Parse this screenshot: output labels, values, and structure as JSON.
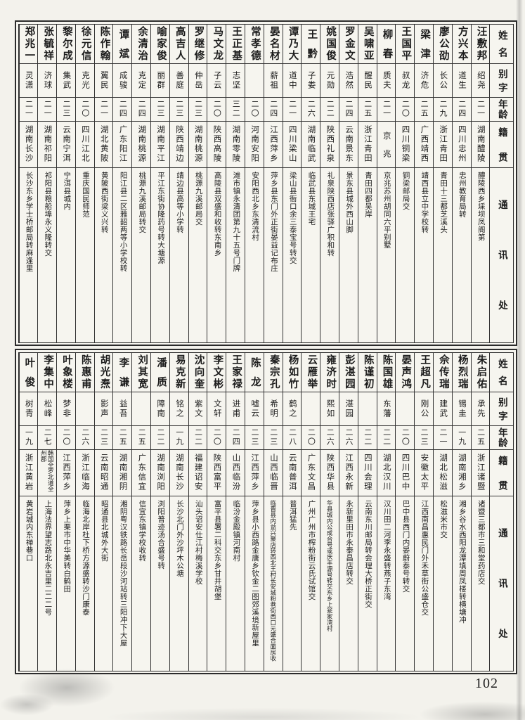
{
  "page": {
    "number": "102"
  },
  "headers": {
    "name": "姓名",
    "courtesy": "别字",
    "age": "年龄",
    "origin": "籍贯",
    "address": "通讯处"
  },
  "sections": [
    {
      "people": [
        {
          "name": "汪敷邦",
          "courtesy": "绍尧",
          "age": "二一",
          "origin": "湖南醴陵",
          "address": "醴陵西乡埰坝凤阁第"
        },
        {
          "name": "方兴本",
          "courtesy": "道生",
          "age": "二四",
          "origin": "四川忠州",
          "address": "忠州教育局转"
        },
        {
          "name": "廖公劭",
          "courtesy": "长公",
          "age": "二九",
          "origin": "浙江青田",
          "address": "青田十三都芝溪头"
        },
        {
          "name": "梁津",
          "courtesy": "济危",
          "age": "二五",
          "origin": "广西靖西",
          "address": "靖西县立中学校转"
        },
        {
          "name": "王国平",
          "courtesy": "叔龙",
          "age": "二〇",
          "origin": "四川铜梁",
          "address": "铜梁邮局交"
        },
        {
          "name": "柳春",
          "courtesy": "质夫",
          "age": "二一",
          "origin": "京兆",
          "address": "京兆苏州胡同六平别墅"
        },
        {
          "name": "吴啸亚",
          "courtesy": "醒民",
          "age": "二五",
          "origin": "浙江青田",
          "address": "青田四都吴岸"
        },
        {
          "name": "罗金文",
          "courtesy": "浩然",
          "age": "二四",
          "origin": "云南景东",
          "address": "景东县城外西山脚"
        },
        {
          "name": "姚国俊",
          "courtesy": "元勋",
          "age": "二二",
          "origin": "陕西礼泉",
          "address": "礼泉陕西店张驿广积和转"
        },
        {
          "name": "王黔",
          "courtesy": "子娄",
          "age": "二六",
          "origin": "湖南临武",
          "address": "临武县东城王宅"
        },
        {
          "name": "谭乃大",
          "courtesy": "道中",
          "age": "二一",
          "origin": "四川梁山",
          "address": "梁山县衙口余三泰宝号转交"
        },
        {
          "name": "晏名材",
          "courtesy": "薪祖",
          "age": "二四",
          "origin": "江西萍乡",
          "address": "萍乡县东门外正街晏益记布庄"
        },
        {
          "name": "常孝德",
          "courtesy": "",
          "age": "二〇",
          "origin": "河南安阳",
          "address": "安阳西北乡东清流村"
        },
        {
          "name": "王正基",
          "courtesy": "志坚",
          "age": "三二",
          "origin": "湖南零陵",
          "address": "滩市镇永清团第九十五号门牌"
        },
        {
          "name": "马文龙",
          "courtesy": "子云",
          "age": "二〇",
          "origin": "陕西高陵",
          "address": "高陵县双盛和收转东南乡"
        },
        {
          "name": "罗继修",
          "courtesy": "仲岳",
          "age": "二三",
          "origin": "湖南桃源",
          "address": "桃源九溪邮局交"
        },
        {
          "name": "高吉人",
          "courtesy": "善庭",
          "age": "二三",
          "origin": "陕西靖边",
          "address": "靖边县高等小学转"
        },
        {
          "name": "喻家俊",
          "courtesy": "丽群",
          "age": "二三",
          "origin": "湖南平江",
          "address": "平江东街协隆药号转大塘源"
        },
        {
          "name": "余清治",
          "courtesy": "克定",
          "age": "二四",
          "origin": "湖南桃源",
          "address": "桃源九溪邮局转交"
        },
        {
          "name": "谭斌",
          "courtesy": "成骏",
          "age": "二四",
          "origin": "广东阳江",
          "address": "阳江县二区雅韶两等小学校转"
        },
        {
          "name": "陈作翰",
          "courtesy": "翼民",
          "age": "二一",
          "origin": "湖北黄陂",
          "address": "黄陂西街梁义兴转"
        },
        {
          "name": "徐元信",
          "courtesy": "克光",
          "age": "二〇",
          "origin": "四川江北",
          "address": "重庆国民师范"
        },
        {
          "name": "黎尔成",
          "courtesy": "集武",
          "age": "二三",
          "origin": "云南宁洱",
          "address": "宁洱县城内"
        },
        {
          "name": "张毓祥",
          "courtesy": "济球",
          "age": "二一",
          "origin": "湖南祁阳",
          "address": "祁阳县粮船埠永义隆转交"
        },
        {
          "name": "郑兆一",
          "courtesy": "灵潇",
          "age": "二一",
          "origin": "湖南长沙",
          "address": "长沙东乡学士桥邮局转麻逢里"
        }
      ]
    },
    {
      "people": [
        {
          "name": "朱启佑",
          "courtesy": "承先",
          "age": "二五",
          "origin": "浙江诸暨",
          "address": "诸暨三都市三和堂药店交"
        },
        {
          "name": "杨烈瑞",
          "courtesy": "锡圭",
          "age": "一九",
          "origin": "湖南湘乡",
          "address": "湘乡谷水西阳龙潭填周凤楼转横塘冲"
        },
        {
          "name": "佘传瑞",
          "courtesy": "建武",
          "age": "二一",
          "origin": "湖北松滋",
          "address": "松滋米市交"
        },
        {
          "name": "王超凡",
          "courtesy": "刚公",
          "age": "二三",
          "origin": "安徽太平",
          "address": "江西南昌惠民门外禾草街公盛仓交"
        },
        {
          "name": "晏声鸿",
          "courtesy": "",
          "age": "二〇",
          "origin": "四川巴中",
          "address": "巴中县西门内晏蔚泰号转交"
        },
        {
          "name": "陈国雄",
          "courtesy": "东藩",
          "age": "二二",
          "origin": "湖北汉川",
          "address": "汉川田二河李永盛转燕子东湾"
        },
        {
          "name": "陈谨初",
          "courtesy": "",
          "age": "二二",
          "origin": "四川会理",
          "address": "云南东川邮局转会理大桥正街交"
        },
        {
          "name": "彭湛园",
          "courtesy": "湛园",
          "age": "二六",
          "origin": "江西永新",
          "address": "永新里田市永泰昌店转交"
        },
        {
          "name": "雍济时",
          "courtesy": "熙如",
          "age": "二六",
          "origin": "陕西华县",
          "address": "华县城内公成合号或庆丰源号转交东乡上瓮家湾村"
        },
        {
          "name": "云雁举",
          "courtesy": "",
          "age": "二〇",
          "origin": "广东文昌",
          "address": "广州广州市榨粉街云氏试馆交"
        },
        {
          "name": "杨如竹",
          "courtesy": "鹤之",
          "age": "二八",
          "origin": "云南普洱",
          "address": "普洱猛先"
        },
        {
          "name": "秦宗孔",
          "courtesy": "希明",
          "age": "二三",
          "origin": "山西临晋",
          "address": "临晋县内益兴聚店转西北王村长安城粉巷街西口元盛合面房收"
        },
        {
          "name": "陈龙",
          "courtesy": "嘘云",
          "age": "二三",
          "origin": "江西萍乡",
          "address": "萍乡县小西路金唐乡钦金二图郊溪境新屋里"
        },
        {
          "name": "王家禄",
          "courtesy": "进甫",
          "age": "二四",
          "origin": "山西临汾",
          "address": "临汾金殿镇河南村"
        },
        {
          "name": "李文彬",
          "courtesy": "文轩",
          "age": "二〇",
          "origin": "陕西富平",
          "address": "富平县署二科交东乡甘井胡堡"
        },
        {
          "name": "沈向奎",
          "courtesy": "紫文",
          "age": "二二",
          "origin": "福建诏安",
          "address": "汕头诏安仕江村梅溪学校"
        },
        {
          "name": "易克新",
          "courtesy": "铭之",
          "age": "一九",
          "origin": "湖南长沙",
          "address": "长沙北门外沙坪木公塘"
        },
        {
          "name": "潘质",
          "courtesy": "障南",
          "age": "二二",
          "origin": "湖南浏阳",
          "address": "浏阳普迹汤合盛号转"
        },
        {
          "name": "刘其宽",
          "courtesy": "",
          "age": "二五",
          "origin": "广东信宜",
          "address": "信宜东镇学校收转"
        },
        {
          "name": "李谦",
          "courtesy": "益吾",
          "age": "二五",
          "origin": "湖南湘阴",
          "address": "湘阴粤汉铁路长岳段沙河站转三阳冲下大屋"
        },
        {
          "name": "胡光焘",
          "courtesy": "影声",
          "age": "二三",
          "origin": "云南昭通",
          "address": "昭通县北城外大街"
        },
        {
          "name": "陈惠甫",
          "courtesy": "",
          "age": "二六",
          "origin": "浙江临海",
          "address": "临海北岸杜下桥方源盛转沙门康泰"
        },
        {
          "name": "叶象楼",
          "courtesy": "梦非",
          "age": "二〇",
          "origin": "江西萍乡",
          "address": "萍乡上栗市中华美转白鹤田"
        },
        {
          "name": "李集中",
          "courtesy": "松峰",
          "age": "二七",
          "origin": "韩国全罗北道全州郡",
          "address": "上海法界望志路北永吉里二二二号"
        },
        {
          "name": "叶俊",
          "courtesy": "树青",
          "age": "一九",
          "origin": "浙江黄岩",
          "address": "黄岩城内东禅巷口"
        }
      ]
    }
  ]
}
